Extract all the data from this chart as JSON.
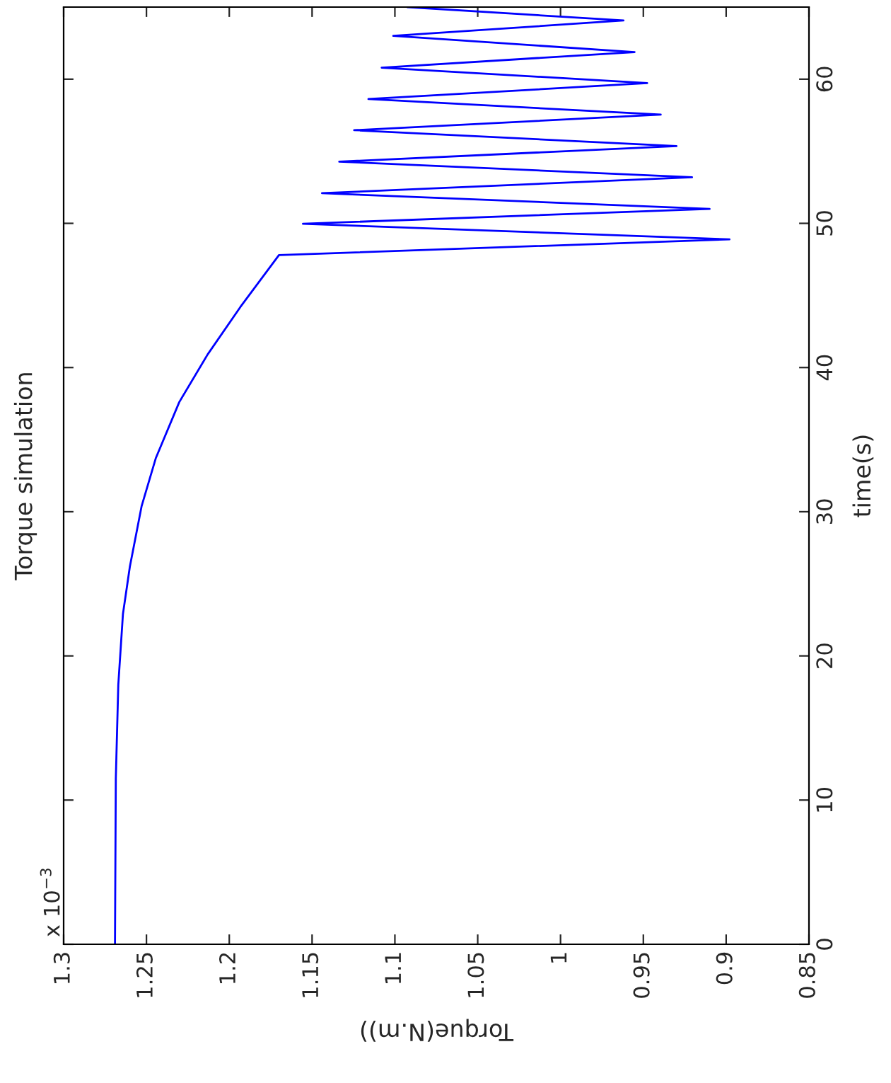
{
  "chart_data": {
    "type": "line",
    "title": "Torque simulation",
    "xlabel": "Torque(N.m))",
    "ylabel": "time(s)",
    "annotations": [
      "x 10$^{−3}$"
    ],
    "series": [
      {
        "color": "#0000ff",
        "x": [
          1.269,
          1.2685,
          1.267,
          1.2642,
          1.26,
          1.2529,
          1.2444,
          1.2302,
          1.2131,
          1.1933,
          1.17,
          0.898,
          1.1555,
          0.91,
          1.144,
          0.9206,
          1.1336,
          0.93,
          1.1246,
          0.9395,
          1.116,
          0.9477,
          1.108,
          0.9553,
          1.101,
          0.962,
          1.0925
        ],
        "values": [
          0,
          11.5,
          18.0,
          22.9,
          26.2,
          30.4,
          33.7,
          37.6,
          40.9,
          44.2,
          47.8,
          48.89,
          49.97,
          51.0,
          52.09,
          53.2,
          54.28,
          55.36,
          56.46,
          57.54,
          58.62,
          59.73,
          60.8,
          61.88,
          63.0,
          64.07,
          65.0
        ]
      }
    ],
    "xlim": [
      1.3,
      0.85
    ],
    "xticks": [
      0.85,
      0.9,
      0.95,
      1,
      1.05,
      1.1,
      1.15,
      1.2,
      1.25,
      1.3
    ],
    "ylim": [
      0,
      65
    ],
    "yticks": [
      0,
      10,
      20,
      30,
      40,
      50,
      60
    ],
    "grid": false,
    "legend": false,
    "marker": "none",
    "line_style": "solid"
  }
}
